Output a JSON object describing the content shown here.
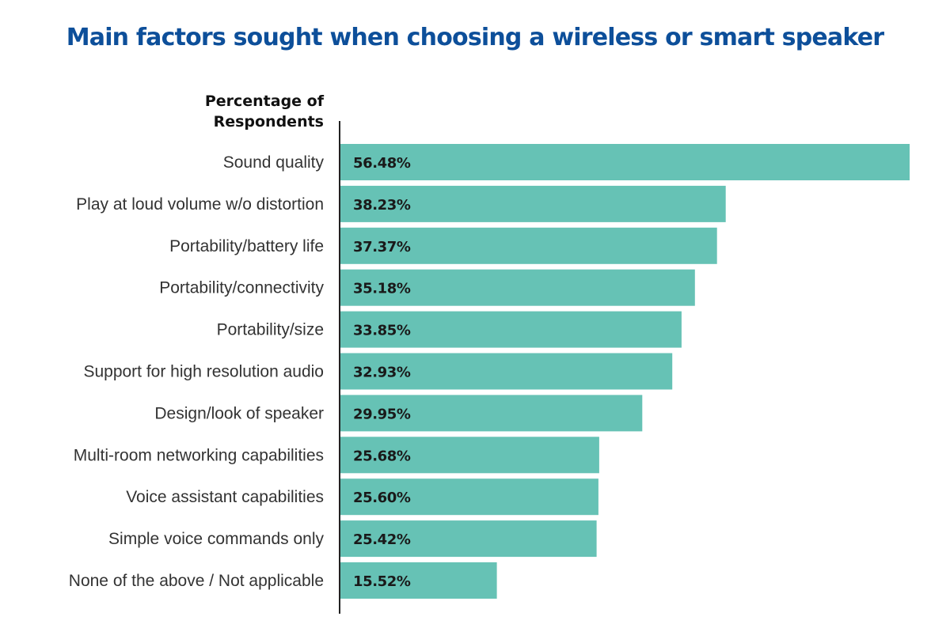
{
  "colors": {
    "title": "#0d4f9a",
    "bar": "#66c2b5",
    "axis": "#222222"
  },
  "chart_data": {
    "type": "bar",
    "orientation": "horizontal",
    "title": "Main factors sought when choosing a wireless or smart speaker",
    "axis_title_lines": [
      "Percentage of",
      "Respondents"
    ],
    "categories": [
      "Sound quality",
      "Play at loud volume w/o distortion",
      "Portability/battery life",
      "Portability/connectivity",
      "Portability/size",
      "Support for high resolution audio",
      "Design/look of speaker",
      "Multi-room networking capabilities",
      "Voice assistant capabilities",
      "Simple voice commands only",
      "None of the above / Not applicable"
    ],
    "values": [
      56.48,
      38.23,
      37.37,
      35.18,
      33.85,
      32.93,
      29.95,
      25.68,
      25.6,
      25.42,
      15.52
    ],
    "value_labels": [
      "56.48%",
      "38.23%",
      "37.37%",
      "35.18%",
      "33.85%",
      "32.93%",
      "29.95%",
      "25.68%",
      "25.60%",
      "25.42%",
      "15.52%"
    ],
    "unit": "%",
    "xlim": [
      0,
      56.48
    ],
    "grid": false,
    "legend": "none"
  }
}
